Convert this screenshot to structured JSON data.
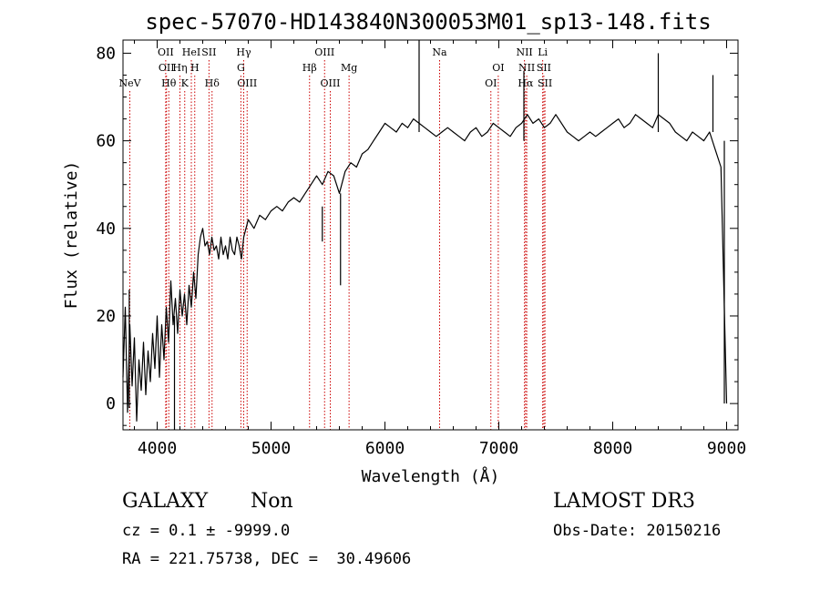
{
  "chart_data": {
    "type": "line",
    "title": "spec-57070-HD143840N300053M01_sp13-148.fits",
    "xlabel": "Wavelength (Å)",
    "ylabel": "Flux (relative)",
    "xlim": [
      3700,
      9100
    ],
    "ylim": [
      -6,
      83
    ],
    "xticks": [
      4000,
      5000,
      6000,
      7000,
      8000,
      9000
    ],
    "yticks": [
      0,
      20,
      40,
      60,
      80
    ],
    "grid": false,
    "line_color": "#000000",
    "marker_color": "#cc0000",
    "series": [
      {
        "x": [
          3700,
          3720,
          3740,
          3760,
          3780,
          3800,
          3820,
          3840,
          3860,
          3880,
          3900,
          3920,
          3940,
          3960,
          3980,
          4000,
          4020,
          4040,
          4060,
          4080,
          4100,
          4120,
          4140,
          4160,
          4180,
          4200,
          4220,
          4240,
          4260,
          4280,
          4300,
          4320,
          4340,
          4360,
          4380,
          4400,
          4420,
          4440,
          4460,
          4480,
          4500,
          4520,
          4540,
          4560,
          4580,
          4600,
          4620,
          4640,
          4660,
          4680,
          4700,
          4720,
          4740,
          4760,
          4780,
          4800,
          4850,
          4900,
          4950,
          5000,
          5050,
          5100,
          5150,
          5200,
          5250,
          5300,
          5350,
          5400,
          5450,
          5500,
          5550,
          5600,
          5650,
          5700,
          5750,
          5800,
          5850,
          5900,
          5950,
          6000,
          6050,
          6100,
          6150,
          6200,
          6250,
          6300,
          6350,
          6400,
          6450,
          6500,
          6550,
          6600,
          6650,
          6700,
          6750,
          6800,
          6850,
          6900,
          6950,
          7000,
          7050,
          7100,
          7150,
          7200,
          7250,
          7300,
          7350,
          7400,
          7450,
          7500,
          7550,
          7600,
          7650,
          7700,
          7750,
          7800,
          7850,
          7900,
          7950,
          8000,
          8050,
          8100,
          8150,
          8200,
          8250,
          8300,
          8350,
          8400,
          8450,
          8500,
          8550,
          8600,
          8650,
          8700,
          8750,
          8800,
          8850,
          8900,
          8950,
          9000
        ],
        "y": [
          6,
          22,
          -2,
          18,
          4,
          15,
          -4,
          10,
          3,
          14,
          2,
          12,
          5,
          16,
          8,
          20,
          6,
          18,
          10,
          22,
          14,
          28,
          18,
          24,
          16,
          26,
          20,
          25,
          18,
          27,
          22,
          30,
          24,
          34,
          38,
          40,
          36,
          37,
          34,
          38,
          35,
          36,
          33,
          38,
          34,
          36,
          33,
          38,
          35,
          34,
          38,
          36,
          33,
          38,
          40,
          42,
          40,
          43,
          42,
          44,
          45,
          44,
          46,
          47,
          46,
          48,
          50,
          52,
          50,
          53,
          52,
          48,
          53,
          55,
          54,
          57,
          58,
          60,
          62,
          64,
          63,
          62,
          64,
          63,
          65,
          64,
          63,
          62,
          61,
          62,
          63,
          62,
          61,
          60,
          62,
          63,
          61,
          62,
          64,
          63,
          62,
          61,
          63,
          64,
          66,
          64,
          65,
          63,
          64,
          66,
          64,
          62,
          61,
          60,
          61,
          62,
          61,
          62,
          63,
          64,
          65,
          63,
          64,
          66,
          65,
          64,
          63,
          66,
          65,
          64,
          62,
          61,
          60,
          62,
          61,
          60,
          62,
          58,
          54,
          0
        ]
      }
    ],
    "spike_lines": [
      {
        "x": 3755,
        "y1": -1,
        "y2": 26
      },
      {
        "x": 4152,
        "y1": -6,
        "y2": 20
      },
      {
        "x": 5610,
        "y1": 27,
        "y2": 48
      },
      {
        "x": 5450,
        "y1": 37,
        "y2": 45
      },
      {
        "x": 6300,
        "y1": 62,
        "y2": 83
      },
      {
        "x": 7220,
        "y1": 60,
        "y2": 76
      },
      {
        "x": 8400,
        "y1": 62,
        "y2": 80
      },
      {
        "x": 8880,
        "y1": 62,
        "y2": 75
      },
      {
        "x": 8980,
        "y1": 0,
        "y2": 60
      }
    ],
    "lines": [
      {
        "label": "NeV",
        "wavelength": 3760,
        "row": 3
      },
      {
        "label": "OII",
        "wavelength": 4075,
        "row": 1
      },
      {
        "label": "OII",
        "wavelength": 4082,
        "row": 2
      },
      {
        "label": "Hθ",
        "wavelength": 4102,
        "row": 3
      },
      {
        "label": "Hη",
        "wavelength": 4200,
        "row": 2
      },
      {
        "label": "HeI",
        "wavelength": 4300,
        "row": 1
      },
      {
        "label": "K",
        "wavelength": 4242,
        "row": 3
      },
      {
        "label": "H",
        "wavelength": 4330,
        "row": 2
      },
      {
        "label": "SII",
        "wavelength": 4455,
        "row": 1
      },
      {
        "label": "Hδ",
        "wavelength": 4482,
        "row": 3
      },
      {
        "label": "Hγ",
        "wavelength": 4760,
        "row": 1
      },
      {
        "label": "G",
        "wavelength": 4735,
        "row": 2
      },
      {
        "label": "OIII",
        "wavelength": 4790,
        "row": 3
      },
      {
        "label": "OIII",
        "wavelength": 5470,
        "row": 1
      },
      {
        "label": "Hβ",
        "wavelength": 5338,
        "row": 2
      },
      {
        "label": "OIII",
        "wavelength": 5520,
        "row": 3
      },
      {
        "label": "Mg",
        "wavelength": 5685,
        "row": 2
      },
      {
        "label": "Na",
        "wavelength": 6480,
        "row": 1
      },
      {
        "label": "OI",
        "wavelength": 6995,
        "row": 2
      },
      {
        "label": "OI",
        "wavelength": 6930,
        "row": 3
      },
      {
        "label": "NII",
        "wavelength": 7225,
        "row": 1
      },
      {
        "label": "NII",
        "wavelength": 7245,
        "row": 2
      },
      {
        "label": "Hα",
        "wavelength": 7235,
        "row": 3
      },
      {
        "label": "Li",
        "wavelength": 7385,
        "row": 1
      },
      {
        "label": "SII",
        "wavelength": 7395,
        "row": 2
      },
      {
        "label": "SII",
        "wavelength": 7405,
        "row": 3
      }
    ]
  },
  "footer": {
    "class_label": "GALAXY",
    "subclass_label": "Non",
    "survey_label": "LAMOST DR3",
    "cz_text": "cz = 0.1 ± -9999.0",
    "obs_date_text": "Obs-Date: 20150216",
    "coords_text": "RA = 221.75738, DEC =  30.49606"
  }
}
